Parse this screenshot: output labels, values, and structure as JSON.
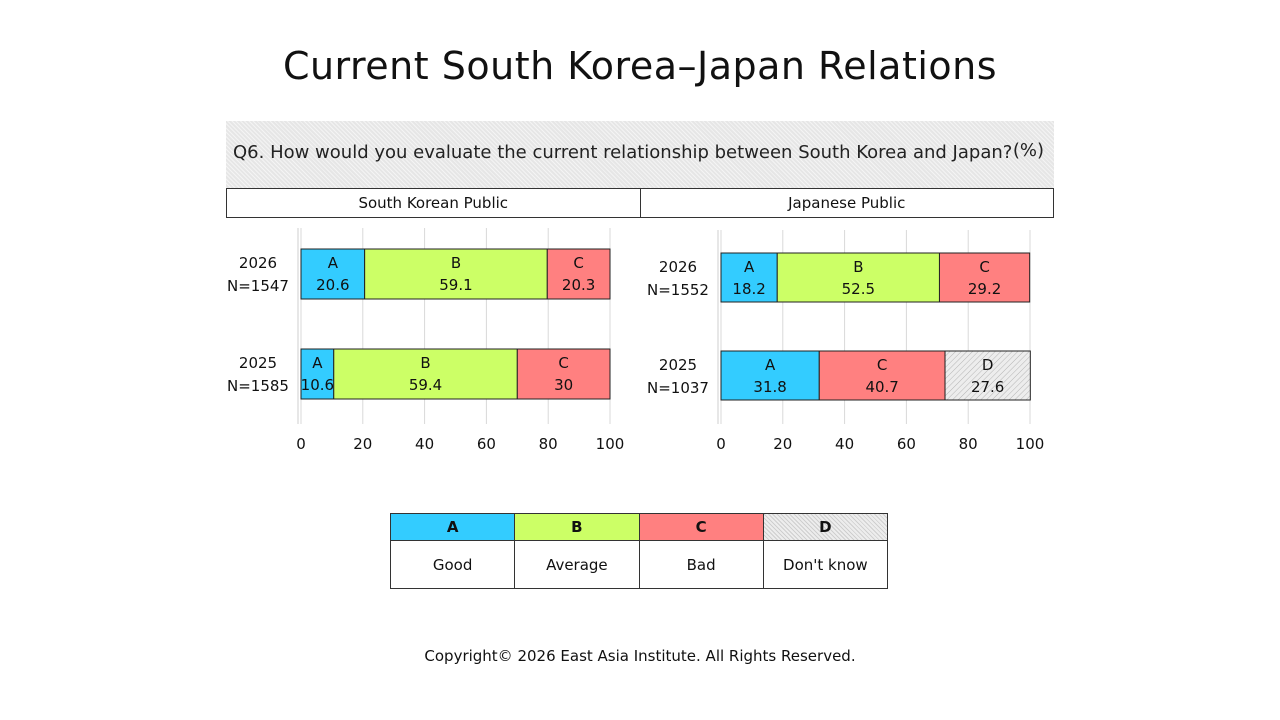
{
  "title": "Current South Korea–Japan Relations",
  "question": "Q6. How would you evaluate the current relationship between South Korea and Japan?",
  "unit": "(%)",
  "panels": [
    "South Korean Public",
    "Japanese Public"
  ],
  "legend": [
    {
      "code": "A",
      "label": "Good",
      "color": "#33ccff"
    },
    {
      "code": "B",
      "label": "Average",
      "color": "#ccff66"
    },
    {
      "code": "C",
      "label": "Bad",
      "color": "#ff8080"
    },
    {
      "code": "D",
      "label": "Don't know",
      "color": "#e8e8e8"
    }
  ],
  "copyright": "Copyright© 2026 East Asia Institute. All Rights Reserved.",
  "chart_data": [
    {
      "type": "bar",
      "orientation": "horizontal",
      "stacked": true,
      "title": "South Korean Public",
      "xlim": [
        0,
        100
      ],
      "xticks": [
        0,
        20,
        40,
        60,
        80,
        100
      ],
      "grid": true,
      "rows": [
        {
          "year": "2026",
          "n": "N=1547",
          "segments": [
            {
              "code": "A",
              "value": 20.6,
              "label": "20.6"
            },
            {
              "code": "B",
              "value": 59.1,
              "label": "59.1"
            },
            {
              "code": "C",
              "value": 20.3,
              "label": "20.3"
            }
          ]
        },
        {
          "year": "2025",
          "n": "N=1585",
          "segments": [
            {
              "code": "A",
              "value": 10.6,
              "label": "10.6"
            },
            {
              "code": "B",
              "value": 59.4,
              "label": "59.4"
            },
            {
              "code": "C",
              "value": 30,
              "label": "30"
            }
          ]
        }
      ]
    },
    {
      "type": "bar",
      "orientation": "horizontal",
      "stacked": true,
      "title": "Japanese Public",
      "xlim": [
        0,
        100
      ],
      "xticks": [
        0,
        20,
        40,
        60,
        80,
        100
      ],
      "grid": true,
      "rows": [
        {
          "year": "2026",
          "n": "N=1552",
          "segments": [
            {
              "code": "A",
              "value": 18.2,
              "label": "18.2"
            },
            {
              "code": "B",
              "value": 52.5,
              "label": "52.5"
            },
            {
              "code": "C",
              "value": 29.2,
              "label": "29.2"
            }
          ]
        },
        {
          "year": "2025",
          "n": "N=1037",
          "segments": [
            {
              "code": "A",
              "value": 31.8,
              "label": "31.8"
            },
            {
              "code": "C",
              "value": 40.7,
              "label": "40.7"
            },
            {
              "code": "D",
              "value": 27.6,
              "label": "27.6"
            }
          ]
        }
      ]
    }
  ]
}
